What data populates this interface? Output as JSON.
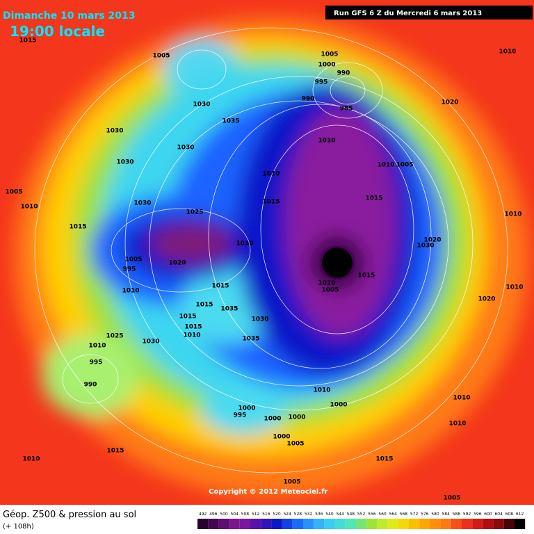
{
  "header": {
    "date": "Dimanche 10 mars 2013",
    "time": "19:00 locale",
    "run": "Run GFS 6 Z du Mercredi 6 mars 2013"
  },
  "copyright": "Copyright © 2012 Meteociel.fr",
  "legend": {
    "title": "Géop. Z500 & pression au sol",
    "lead": "(+ 108h)",
    "scale": [
      492,
      496,
      500,
      504,
      508,
      512,
      516,
      520,
      524,
      528,
      532,
      536,
      540,
      544,
      548,
      552,
      556,
      560,
      564,
      568,
      572,
      576,
      580,
      584,
      588,
      592,
      596,
      600,
      604,
      608,
      612
    ]
  },
  "pressure_labels": [
    1015,
    1005,
    1030,
    1035,
    1030,
    1030,
    1030,
    1005,
    1010,
    1015,
    1030,
    1025,
    1030,
    1020,
    1005,
    995,
    1010,
    1015,
    1015,
    1035,
    1030,
    1015,
    1015,
    1010,
    1025,
    1030,
    1035,
    1010,
    995,
    990,
    1005,
    1000,
    990,
    995,
    990,
    985,
    1010,
    1010,
    1015,
    1010,
    1005,
    1015,
    1020,
    1030,
    1010,
    1005,
    1015,
    1010,
    1020,
    1010,
    1020,
    1010,
    1010,
    1000,
    1000,
    995,
    1000,
    1000,
    1000,
    1005,
    1010,
    1010,
    1010,
    1015,
    1015,
    1005,
    1005
  ]
}
